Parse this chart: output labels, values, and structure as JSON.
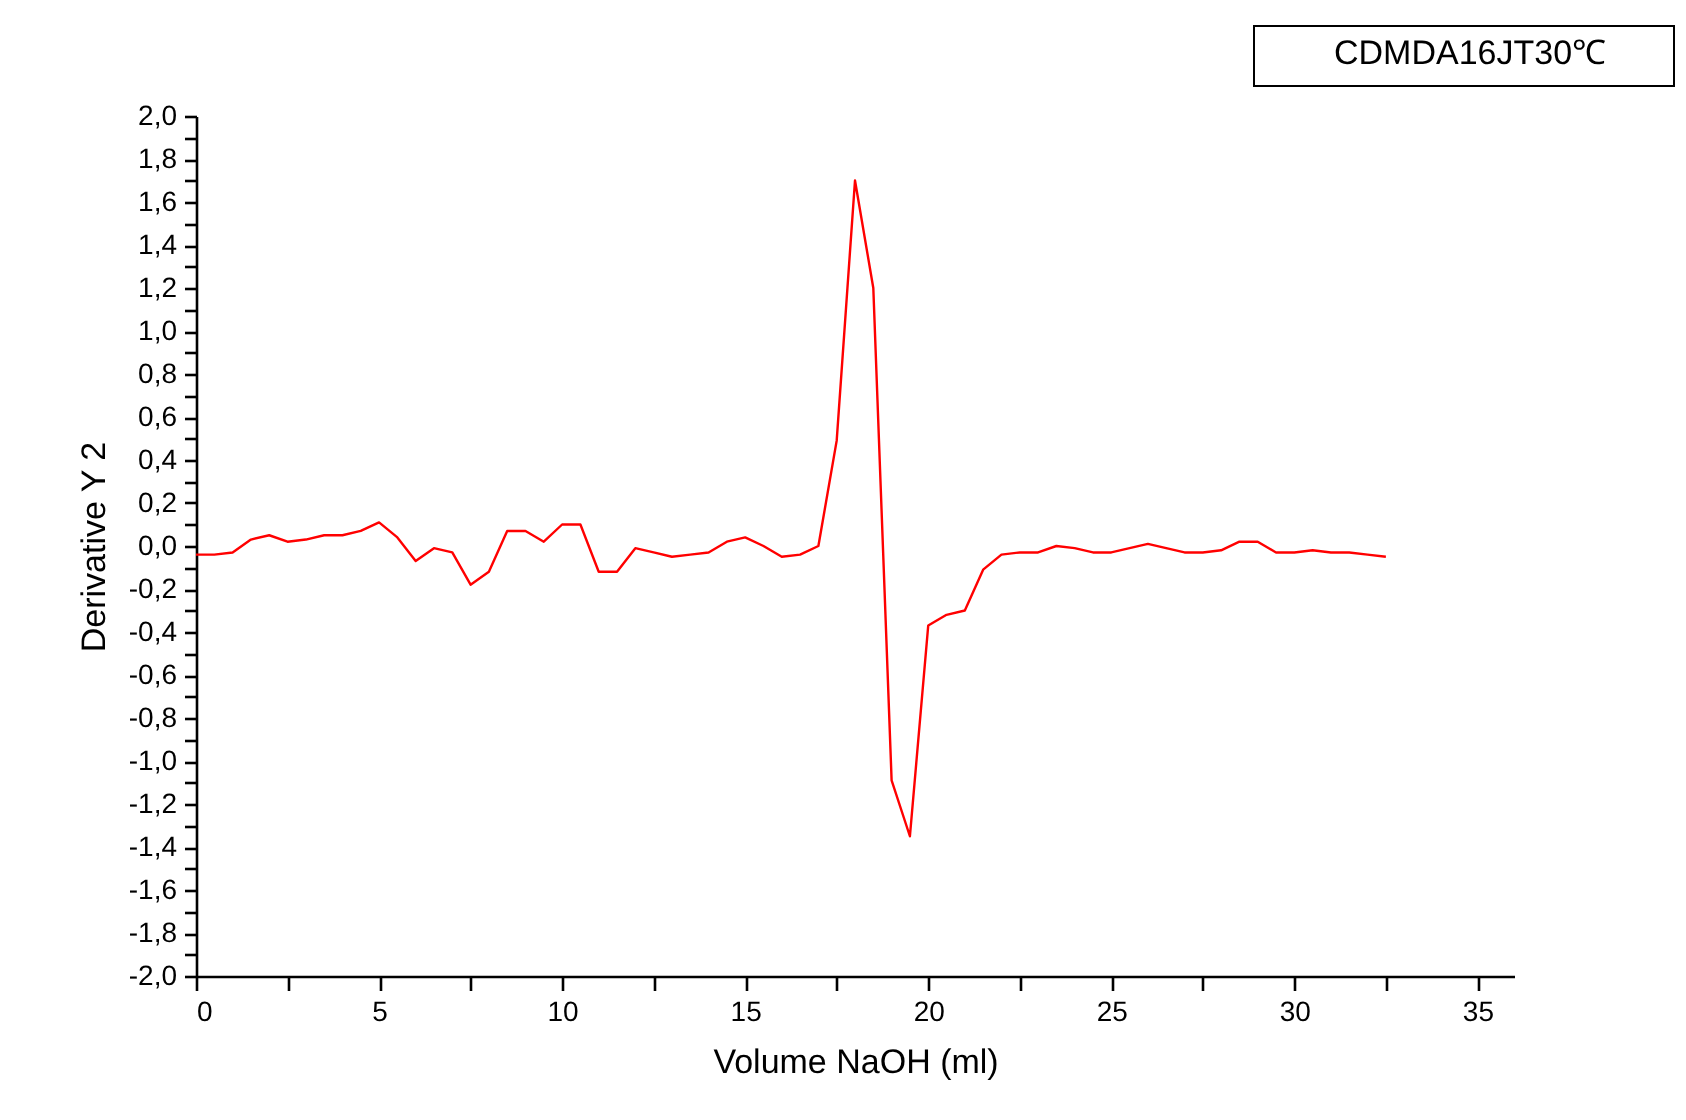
{
  "chart_data": {
    "type": "line",
    "xlabel": "Volume  NaOH (ml)",
    "ylabel": "Derivative Y 2",
    "annotations": [
      "CDMDA16JT30℃"
    ],
    "x": [
      0,
      0.5,
      1,
      1.5,
      2,
      2.5,
      3,
      3.5,
      4,
      4.5,
      5,
      5.5,
      6,
      6.5,
      7,
      7.5,
      8,
      8.5,
      9,
      9.5,
      10,
      10.5,
      11,
      11.5,
      12,
      12.5,
      13,
      13.5,
      14,
      14.5,
      15,
      15.5,
      16,
      16.5,
      17,
      17.5,
      18,
      18.5,
      19,
      19.5,
      20,
      20.5,
      21,
      21.5,
      22,
      22.5,
      23,
      23.5,
      24,
      24.5,
      25,
      25.5,
      26,
      26.5,
      27,
      27.5,
      28,
      28.5,
      29,
      29.5,
      30,
      30.5,
      31,
      31.5,
      32,
      32.5
    ],
    "series": [
      {
        "color": "#ff0000",
        "values": [
          -0.04,
          -0.04,
          -0.03,
          0.03,
          0.05,
          0.02,
          0.03,
          0.05,
          0.05,
          0.07,
          0.11,
          0.04,
          -0.07,
          -0.01,
          -0.03,
          -0.18,
          -0.12,
          0.07,
          0.07,
          0.02,
          0.1,
          0.1,
          -0.12,
          -0.12,
          -0.01,
          -0.03,
          -0.05,
          -0.04,
          -0.03,
          0.02,
          0.04,
          0.0,
          -0.05,
          -0.04,
          0.0,
          0.49,
          1.7,
          1.2,
          -1.09,
          -1.35,
          -0.37,
          -0.32,
          -0.3,
          -0.11,
          -0.04,
          -0.03,
          -0.03,
          0.0,
          -0.01,
          -0.03,
          -0.03,
          -0.01,
          0.01,
          -0.01,
          -0.03,
          -0.03,
          -0.02,
          0.02,
          0.02,
          -0.03,
          -0.03,
          -0.02,
          -0.03,
          -0.03,
          -0.04,
          -0.05
        ]
      }
    ],
    "xlim": [
      0,
      36
    ],
    "ylim": [
      -2,
      2
    ],
    "xticks": [
      0,
      {
        "value": 2.5,
        "label": null
      },
      5,
      {
        "value": 7.5,
        "label": null
      },
      10,
      {
        "value": 12.5,
        "label": null
      },
      15,
      {
        "value": 17.5,
        "label": null
      },
      20,
      {
        "value": 22.5,
        "label": null
      },
      25,
      {
        "value": 27.5,
        "label": null
      },
      30,
      {
        "value": 32.5,
        "label": null
      },
      35
    ],
    "yticks": [
      {
        "value": -2,
        "label": "-2,0"
      },
      {
        "value": -1.9,
        "label": null
      },
      {
        "value": -1.8,
        "label": "-1,8"
      },
      {
        "value": -1.7,
        "label": null
      },
      {
        "value": -1.6,
        "label": "-1,6"
      },
      {
        "value": -1.5,
        "label": null
      },
      {
        "value": -1.4,
        "label": "-1,4"
      },
      {
        "value": -1.3,
        "label": null
      },
      {
        "value": -1.2,
        "label": "-1,2"
      },
      {
        "value": -1.1,
        "label": null
      },
      {
        "value": -1,
        "label": "-1,0"
      },
      {
        "value": -0.9,
        "label": null
      },
      {
        "value": -0.8,
        "label": "-0,8"
      },
      {
        "value": -0.7,
        "label": null
      },
      {
        "value": -0.6,
        "label": "-0,6"
      },
      {
        "value": -0.5,
        "label": null
      },
      {
        "value": -0.4,
        "label": "-0,4"
      },
      {
        "value": -0.3,
        "label": null
      },
      {
        "value": -0.2,
        "label": "-0,2"
      },
      {
        "value": -0.1,
        "label": null
      },
      {
        "value": 0,
        "label": "0,0"
      },
      {
        "value": 0.1,
        "label": null
      },
      {
        "value": 0.2,
        "label": "0,2"
      },
      {
        "value": 0.3,
        "label": null
      },
      {
        "value": 0.4,
        "label": "0,4"
      },
      {
        "value": 0.5,
        "label": null
      },
      {
        "value": 0.6,
        "label": "0,6"
      },
      {
        "value": 0.7,
        "label": null
      },
      {
        "value": 0.8,
        "label": "0,8"
      },
      {
        "value": 0.9,
        "label": null
      },
      {
        "value": 1,
        "label": "1,0"
      },
      {
        "value": 1.1,
        "label": null
      },
      {
        "value": 1.2,
        "label": "1,2"
      },
      {
        "value": 1.3,
        "label": null
      },
      {
        "value": 1.4,
        "label": "1,4"
      },
      {
        "value": 1.5,
        "label": null
      },
      {
        "value": 1.6,
        "label": "1,6"
      },
      {
        "value": 1.7,
        "label": null
      },
      {
        "value": 1.8,
        "label": "1,8"
      },
      {
        "value": 1.9,
        "label": null
      },
      {
        "value": 2,
        "label": "2,0"
      }
    ],
    "grid": false,
    "marker": "none",
    "line_style": "solid"
  }
}
